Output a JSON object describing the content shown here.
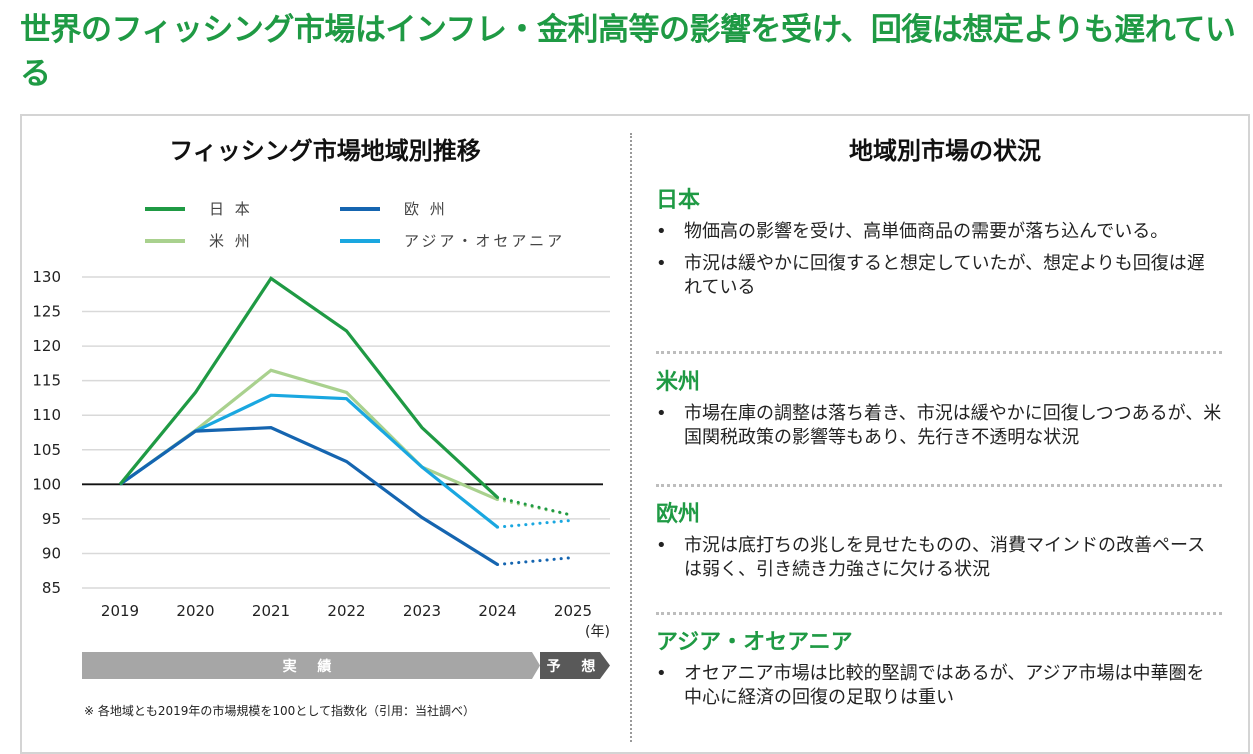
{
  "page": {
    "title": "世界のフィッシング市場はインフレ・金利高等の影響を受け、回復は想定よりも遅れている"
  },
  "left_panel": {
    "title": "フィッシング市場地域別推移",
    "year_unit": "(年)",
    "phases": {
      "actual": "実 績",
      "forecast": "予 想"
    },
    "footnote": "※ 各地域とも2019年の市場規模を100として指数化（引用：当社調べ）"
  },
  "chart_data": {
    "type": "line",
    "title": "フィッシング市場地域別推移",
    "xlabel": "(年)",
    "ylabel": "",
    "x": [
      "2019",
      "2020",
      "2021",
      "2022",
      "2023",
      "2024",
      "2025"
    ],
    "ylim": [
      85,
      130
    ],
    "yticks": [
      130,
      125,
      120,
      115,
      110,
      105,
      100,
      95,
      90,
      85
    ],
    "baseline": 100,
    "grid": true,
    "legend_position": "top",
    "actual_range": [
      "2019",
      "2024"
    ],
    "forecast_range": [
      "2024",
      "2025"
    ],
    "forecast_style": "dotted",
    "series": [
      {
        "name": "日 本",
        "key": "japan",
        "color": "#1f9a44",
        "values": [
          100,
          113.3,
          129.8,
          122.2,
          108.2,
          98.1,
          95.5
        ]
      },
      {
        "name": "米 州",
        "key": "americas",
        "color": "#a9d18e",
        "values": [
          100,
          107.8,
          116.5,
          113.3,
          102.5,
          97.8,
          95.5
        ]
      },
      {
        "name": "欧 州",
        "key": "europe",
        "color": "#1565b0",
        "values": [
          100,
          107.7,
          108.2,
          103.3,
          95.2,
          88.4,
          89.4
        ]
      },
      {
        "name": "アジア・オセアニア",
        "key": "asia_oceania",
        "color": "#1aa7e0",
        "values": [
          100,
          107.7,
          112.9,
          112.4,
          102.5,
          93.8,
          94.8
        ]
      }
    ]
  },
  "right_panel": {
    "title": "地域別市場の状況",
    "bullet": "•",
    "regions": [
      {
        "name": "日本",
        "bullets": [
          "物価高の影響を受け、高単価商品の需要が落ち込んでいる。",
          "市況は緩やかに回復すると想定していたが、想定よりも回復は遅れている"
        ]
      },
      {
        "name": "米州",
        "bullets": [
          "市場在庫の調整は落ち着き、市況は緩やかに回復しつつあるが、米国関税政策の影響等もあり、先行き不透明な状況"
        ]
      },
      {
        "name": "欧州",
        "bullets": [
          "市況は底打ちの兆しを見せたものの、消費マインドの改善ペースは弱く、引き続き力強さに欠ける状況"
        ]
      },
      {
        "name": "アジア・オセアニア",
        "bullets": [
          "オセアニア市場は比較的堅調ではあるが、アジア市場は中華圏を中心に経済の回復の足取りは重い"
        ]
      }
    ]
  }
}
